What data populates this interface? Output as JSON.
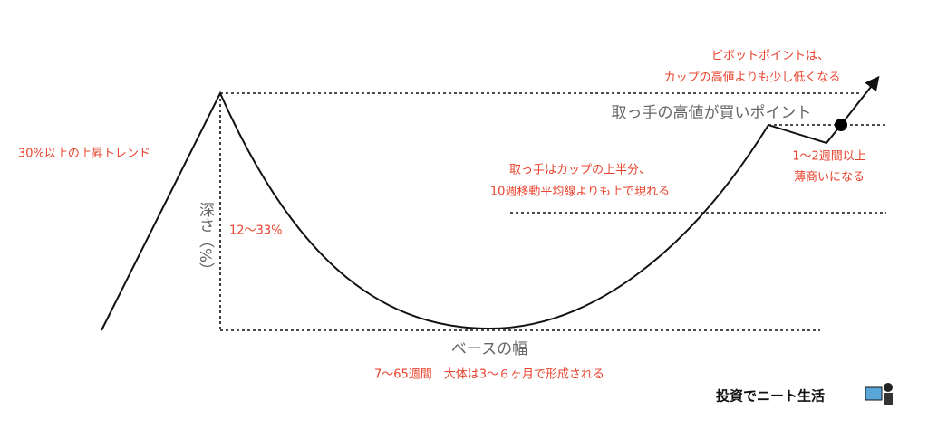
{
  "diagram": {
    "uptrend_label": "30%以上の上昇トレンド",
    "depth_label": "深さ（%）",
    "depth_range": "12〜33%",
    "pivot_note": [
      "ピボットポイントは、",
      "カップの高値よりも少し低くなる"
    ],
    "buy_point": "取っ手の高値が買いポイント",
    "handle_duration": [
      "1〜2週間以上",
      "薄商いになる"
    ],
    "handle_note": [
      "取っ手はカップの上半分、",
      "10週移動平均線よりも上で現れる"
    ],
    "base_width_label": "ベースの幅",
    "base_duration": "7〜65週間　大体は3〜６ヶ月で形成される",
    "logo": "投資でニート生活"
  }
}
